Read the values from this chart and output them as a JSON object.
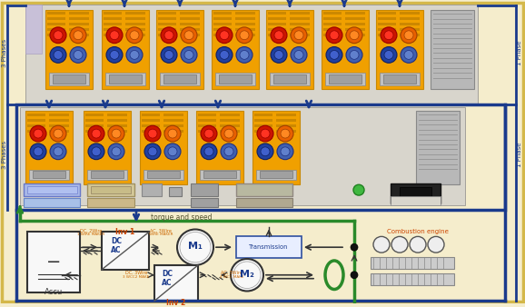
{
  "bg_color": "#f5edcc",
  "outer_border_color": "#d4b84a",
  "blue_color": "#1a3a8c",
  "green_color": "#2a8a2a",
  "torque_label": "torque and speed",
  "left_label1": "3 Phases",
  "left_label2": "3 Phases",
  "right_label1": "1 Phase",
  "right_label2": "1 Phase",
  "inv1_label": "Inv 1",
  "inv2_label": "Inv 2",
  "accu_label": "Accu",
  "combustion_label": "Combustion engine",
  "transmission_label": "Transmission",
  "m1_label": "M₁",
  "m2_label": "M₂",
  "module_yellow": "#f0a000",
  "module_white": "#e8e8e8",
  "analyzer_gray": "#d0d0d0",
  "analyzer_white": "#f0f0f0"
}
